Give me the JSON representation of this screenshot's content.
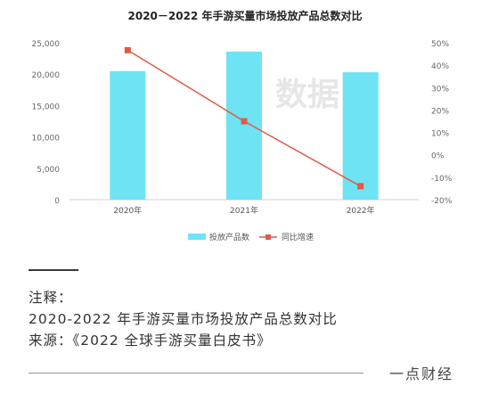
{
  "chart_data": {
    "type": "bar",
    "title": "2020－2022 年手游买量市场投放产品总数对比",
    "categories": [
      "2020年",
      "2021年",
      "2022年"
    ],
    "series": [
      {
        "name": "投放产品数",
        "kind": "bar",
        "axis": "left",
        "values": [
          20500,
          23600,
          20300
        ],
        "color": "#6ee3f4"
      },
      {
        "name": "同比增速",
        "kind": "line",
        "axis": "right",
        "values": [
          46.7,
          15,
          -14
        ],
        "color": "#e05a47"
      }
    ],
    "y_left": {
      "min": 0,
      "max": 25000,
      "ticks": [
        "0",
        "5,000",
        "10,000",
        "15,000",
        "20,000",
        "25,000"
      ],
      "tick_values": [
        0,
        5000,
        10000,
        15000,
        20000,
        25000
      ]
    },
    "y_right": {
      "min": -20,
      "max": 50,
      "ticks": [
        "-20%",
        "-10%",
        "0%",
        "10%",
        "20%",
        "30%",
        "40%",
        "50%"
      ],
      "tick_values": [
        -20,
        -10,
        0,
        10,
        20,
        30,
        40,
        50
      ]
    },
    "grid": false,
    "legend_position": "bottom-center",
    "watermark": "数据"
  },
  "notes": {
    "label": "注释：",
    "desc": "2020-2022 年手游买量市场投放产品总数对比",
    "source": "来源：《2022 全球手游买量白皮书》"
  },
  "brand": "一点财经"
}
